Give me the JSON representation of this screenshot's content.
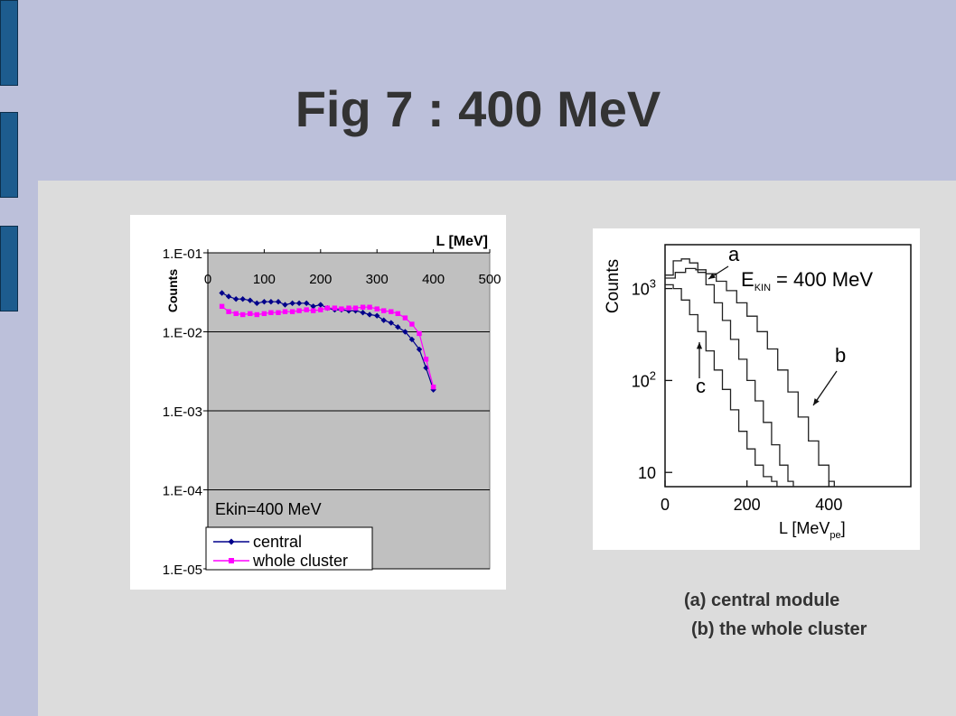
{
  "title": "Fig 7 : 400 MeV",
  "captions": {
    "a": "(a) central module",
    "b": "(b) the whole cluster"
  },
  "colors": {
    "central": "#00008b",
    "whole_cluster": "#ff00ff",
    "plot_bg": "#c0c0c0",
    "frame_bg": "#bcc0da",
    "tabs": "#1d5c8e"
  },
  "chart_data": [
    {
      "type": "line",
      "ylabel": "Counts",
      "xlabel": "L [MeV]",
      "annotation": "Ekin=400 MeV",
      "x_ticks": [
        "0",
        "100",
        "200",
        "300",
        "400",
        "500"
      ],
      "y_ticks": [
        "1.E-01",
        "1.E-02",
        "1.E-03",
        "1.E-04",
        "1.E-05"
      ],
      "xlim": [
        0,
        500
      ],
      "ylim": [
        1e-05,
        0.1
      ],
      "yscale": "log",
      "grid": true,
      "legend": "bottom-left",
      "series": [
        {
          "name": "central",
          "color": "#00008b",
          "x": [
            25,
            37,
            50,
            62,
            75,
            87,
            100,
            112,
            125,
            137,
            150,
            162,
            175,
            187,
            200,
            212,
            225,
            237,
            250,
            262,
            275,
            287,
            300,
            312,
            325,
            337,
            350,
            362,
            375,
            387,
            400
          ],
          "y": [
            0.031,
            0.028,
            0.026,
            0.026,
            0.025,
            0.023,
            0.024,
            0.024,
            0.024,
            0.022,
            0.023,
            0.023,
            0.023,
            0.021,
            0.022,
            0.02,
            0.019,
            0.019,
            0.0185,
            0.0185,
            0.0175,
            0.0165,
            0.016,
            0.014,
            0.013,
            0.0115,
            0.01,
            0.008,
            0.006,
            0.0035,
            0.00185
          ]
        },
        {
          "name": "whole cluster",
          "color": "#ff00ff",
          "x": [
            25,
            37,
            50,
            62,
            75,
            87,
            100,
            112,
            125,
            137,
            150,
            162,
            175,
            187,
            200,
            212,
            225,
            237,
            250,
            262,
            275,
            287,
            300,
            312,
            325,
            337,
            350,
            362,
            375,
            387,
            400
          ],
          "y": [
            0.021,
            0.018,
            0.017,
            0.0165,
            0.017,
            0.0165,
            0.017,
            0.0175,
            0.0175,
            0.018,
            0.018,
            0.0185,
            0.019,
            0.0185,
            0.019,
            0.02,
            0.02,
            0.0195,
            0.02,
            0.02,
            0.0205,
            0.0205,
            0.0195,
            0.0185,
            0.018,
            0.017,
            0.015,
            0.0125,
            0.0095,
            0.0045,
            0.002
          ]
        }
      ]
    },
    {
      "type": "line",
      "ylabel": "Counts",
      "xlabel": "L [MeV",
      "xlabel_sub": "pe",
      "xlabel_end": "]",
      "annotation_main": "E",
      "annotation_sub": "KIN",
      "annotation_rest": "= 400 MeV",
      "x_ticks": [
        "0",
        "200",
        "400"
      ],
      "y_ticks": [
        {
          "base": "10",
          "exp": "3"
        },
        {
          "base": "10",
          "exp": "2"
        },
        {
          "base": "10",
          "exp": ""
        }
      ],
      "curve_labels": [
        "a",
        "b",
        "c"
      ],
      "xlim": [
        0,
        600
      ],
      "ylim": [
        7,
        3000
      ],
      "yscale": "log",
      "grid": false,
      "series": [
        {
          "label": "a",
          "x": [
            0,
            20,
            40,
            60,
            80,
            100,
            120,
            140,
            160,
            180,
            200,
            220,
            240,
            260,
            280,
            300
          ],
          "y": [
            1400,
            2000,
            2100,
            1900,
            1500,
            1100,
            700,
            450,
            280,
            170,
            100,
            60,
            35,
            20,
            12,
            8
          ]
        },
        {
          "label": "b",
          "x": [
            0,
            25,
            50,
            75,
            100,
            125,
            150,
            175,
            200,
            225,
            250,
            275,
            300,
            325,
            350,
            375,
            400
          ],
          "y": [
            1300,
            1500,
            1650,
            1600,
            1450,
            1200,
            950,
            700,
            500,
            340,
            220,
            130,
            75,
            40,
            22,
            12,
            8
          ]
        },
        {
          "label": "c",
          "x": [
            0,
            20,
            40,
            60,
            80,
            100,
            120,
            140,
            160,
            180,
            200,
            220,
            240,
            260
          ],
          "y": [
            1100,
            1000,
            750,
            520,
            340,
            210,
            130,
            80,
            48,
            28,
            18,
            12,
            9,
            8
          ]
        }
      ]
    }
  ]
}
